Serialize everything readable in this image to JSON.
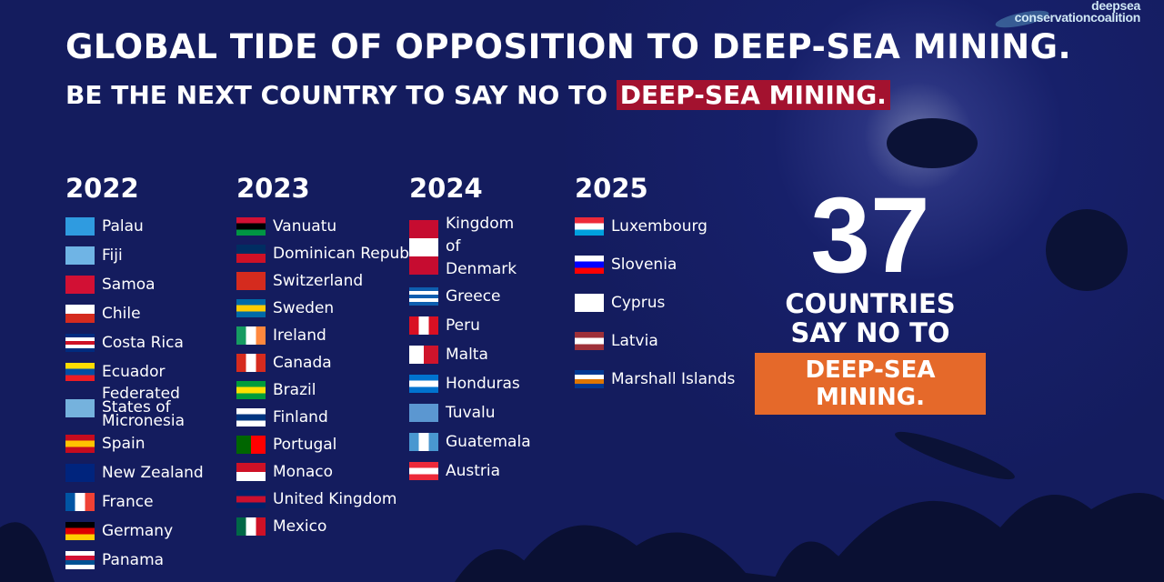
{
  "logo": {
    "text": "deepsea conservationcoalition"
  },
  "title": "GLOBAL TIDE OF OPPOSITION TO DEEP-SEA MINING.",
  "subtitle": {
    "prefix": "BE THE NEXT COUNTRY TO SAY NO TO ",
    "highlight": "DEEP-SEA MINING."
  },
  "columns": [
    {
      "year": "2022",
      "items": [
        {
          "name": "Palau",
          "flag": [
            "#2f9be0",
            "#2f9be0"
          ]
        },
        {
          "name": "Fiji",
          "flag": [
            "#6fb4e5",
            "#6fb4e5"
          ]
        },
        {
          "name": "Samoa",
          "flag": [
            "#d21034",
            "#d21034"
          ]
        },
        {
          "name": "Chile",
          "flag": [
            "#ffffff",
            "#d52b1e"
          ]
        },
        {
          "name": "Costa Rica",
          "flag": [
            "#002b7f",
            "#ffffff",
            "#ce1126",
            "#ffffff",
            "#002b7f"
          ]
        },
        {
          "name": "Ecuador",
          "flag": [
            "#ffdd00",
            "#034ea2",
            "#ed1c24"
          ]
        },
        {
          "name": "Federated States of Micronesia",
          "flag": [
            "#75b2dd",
            "#75b2dd"
          ]
        },
        {
          "name": "Spain",
          "flag": [
            "#c60b1e",
            "#ffc400",
            "#c60b1e"
          ]
        },
        {
          "name": "New Zealand",
          "flag": [
            "#00247d",
            "#00247d"
          ]
        },
        {
          "name": "France",
          "flag": [
            "#0055a4",
            "#ffffff",
            "#ef4135"
          ],
          "vertical": true
        },
        {
          "name": "Germany",
          "flag": [
            "#000000",
            "#dd0000",
            "#ffce00"
          ]
        },
        {
          "name": "Panama",
          "flag": [
            "#ffffff",
            "#d21034",
            "#005293",
            "#ffffff"
          ]
        }
      ]
    },
    {
      "year": "2023",
      "items": [
        {
          "name": "Vanuatu",
          "flag": [
            "#d21034",
            "#000000",
            "#009543"
          ]
        },
        {
          "name": "Dominican Republic",
          "flag": [
            "#002d62",
            "#ce1126"
          ]
        },
        {
          "name": "Switzerland",
          "flag": [
            "#d52b1e",
            "#d52b1e"
          ]
        },
        {
          "name": "Sweden",
          "flag": [
            "#006aa7",
            "#fecc00",
            "#006aa7"
          ]
        },
        {
          "name": "Ireland",
          "flag": [
            "#169b62",
            "#ffffff",
            "#ff883e"
          ],
          "vertical": true
        },
        {
          "name": "Canada",
          "flag": [
            "#d52b1e",
            "#ffffff",
            "#d52b1e"
          ],
          "vertical": true
        },
        {
          "name": "Brazil",
          "flag": [
            "#009c3b",
            "#ffdf00",
            "#009c3b"
          ]
        },
        {
          "name": "Finland",
          "flag": [
            "#ffffff",
            "#003580",
            "#ffffff"
          ]
        },
        {
          "name": "Portugal",
          "flag": [
            "#006600",
            "#ff0000"
          ],
          "vertical": true
        },
        {
          "name": "Monaco",
          "flag": [
            "#ce1126",
            "#ffffff"
          ]
        },
        {
          "name": "United Kingdom",
          "flag": [
            "#012169",
            "#c8102e",
            "#012169"
          ]
        },
        {
          "name": "Mexico",
          "flag": [
            "#006847",
            "#ffffff",
            "#ce1126"
          ],
          "vertical": true
        }
      ]
    },
    {
      "year": "2024",
      "items": [
        {
          "name": "Kingdom of Denmark",
          "flag": [
            "#c60c30",
            "#ffffff",
            "#c60c30"
          ],
          "multi": 3
        },
        {
          "name": "Greece",
          "flag": [
            "#0d5eaf",
            "#ffffff",
            "#0d5eaf",
            "#ffffff",
            "#0d5eaf"
          ]
        },
        {
          "name": "Peru",
          "flag": [
            "#d91023",
            "#ffffff",
            "#d91023"
          ],
          "vertical": true
        },
        {
          "name": "Malta",
          "flag": [
            "#ffffff",
            "#cf142b"
          ],
          "vertical": true
        },
        {
          "name": "Honduras",
          "flag": [
            "#0073cf",
            "#ffffff",
            "#0073cf"
          ]
        },
        {
          "name": "Tuvalu",
          "flag": [
            "#5b97d1",
            "#5b97d1"
          ]
        },
        {
          "name": "Guatemala",
          "flag": [
            "#4997d0",
            "#ffffff",
            "#4997d0"
          ],
          "vertical": true
        },
        {
          "name": "Austria",
          "flag": [
            "#ed2939",
            "#ffffff",
            "#ed2939"
          ]
        }
      ]
    },
    {
      "year": "2025",
      "items": [
        {
          "name": "Luxembourg",
          "flag": [
            "#ed2939",
            "#ffffff",
            "#00a1de"
          ]
        },
        {
          "name": "Slovenia",
          "flag": [
            "#ffffff",
            "#0000ff",
            "#ff0000"
          ]
        },
        {
          "name": "Cyprus",
          "flag": [
            "#ffffff",
            "#ffffff"
          ]
        },
        {
          "name": "Latvia",
          "flag": [
            "#9e3039",
            "#ffffff",
            "#9e3039"
          ]
        },
        {
          "name": "Marshall Islands",
          "flag": [
            "#003893",
            "#ffffff",
            "#dd7500",
            "#003893"
          ]
        }
      ]
    }
  ],
  "counter": {
    "number": "37",
    "line1": "COUNTRIES",
    "line2": "SAY NO TO",
    "tag": "DEEP-SEA MINING."
  }
}
